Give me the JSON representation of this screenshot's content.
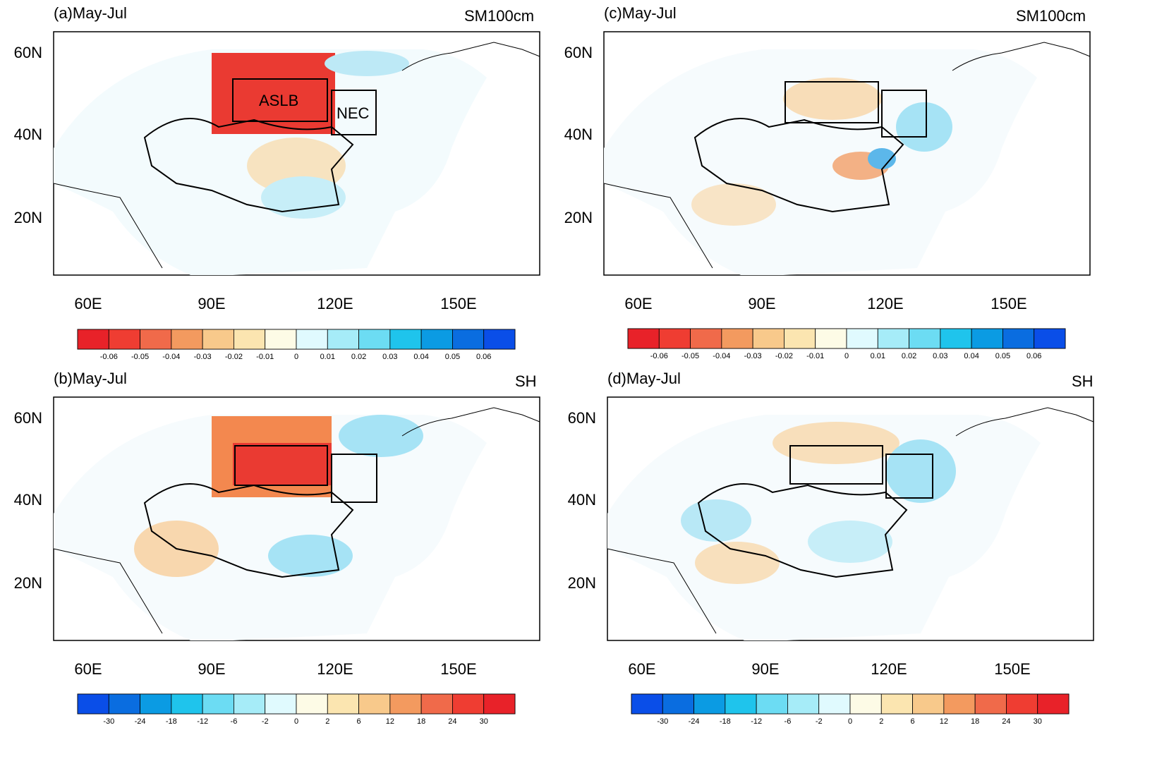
{
  "panels": [
    {
      "id": "a",
      "title": "(a)May-Jul",
      "variable": "SM100cm",
      "boxes": [
        {
          "label": "ASLB"
        },
        {
          "label": "NEC"
        }
      ],
      "colorbar": {
        "labels": [
          "-0.06",
          "-0.05",
          "-0.04",
          "-0.03",
          "-0.02",
          "-0.01",
          "0",
          "0.01",
          "0.02",
          "0.03",
          "0.04",
          "0.05",
          "0.06"
        ],
        "colors": [
          "#e82229",
          "#ef3d32",
          "#f06a4a",
          "#f39a5f",
          "#f8c98b",
          "#fbe5b0",
          "#fdfbe6",
          "#e0fafe",
          "#a6ecf8",
          "#6cdcf3",
          "#1fc4ec",
          "#0b9be3",
          "#0a6de0",
          "#0a4ee8"
        ]
      }
    },
    {
      "id": "b",
      "title": "(b)May-Jul",
      "variable": "SH",
      "boxes": [],
      "colorbar": {
        "labels": [
          "-30",
          "-24",
          "-18",
          "-12",
          "-6",
          "-2",
          "0",
          "2",
          "6",
          "12",
          "18",
          "24",
          "30"
        ],
        "colors": [
          "#0a4ee8",
          "#0a6de0",
          "#0b9be3",
          "#1fc4ec",
          "#6cdcf3",
          "#a6ecf8",
          "#e0fafe",
          "#fdfbe6",
          "#fbe5b0",
          "#f8c98b",
          "#f39a5f",
          "#f06a4a",
          "#ef3d32",
          "#e82229"
        ]
      }
    },
    {
      "id": "c",
      "title": "(c)May-Jul",
      "variable": "SM100cm",
      "boxes": [],
      "colorbar": {
        "labels": [
          "-0.06",
          "-0.05",
          "-0.04",
          "-0.03",
          "-0.02",
          "-0.01",
          "0",
          "0.01",
          "0.02",
          "0.03",
          "0.04",
          "0.05",
          "0.06"
        ],
        "colors": [
          "#e82229",
          "#ef3d32",
          "#f06a4a",
          "#f39a5f",
          "#f8c98b",
          "#fbe5b0",
          "#fdfbe6",
          "#e0fafe",
          "#a6ecf8",
          "#6cdcf3",
          "#1fc4ec",
          "#0b9be3",
          "#0a6de0",
          "#0a4ee8"
        ]
      }
    },
    {
      "id": "d",
      "title": "(d)May-Jul",
      "variable": "SH",
      "boxes": [],
      "colorbar": {
        "labels": [
          "-30",
          "-24",
          "-18",
          "-12",
          "-6",
          "-2",
          "0",
          "2",
          "6",
          "12",
          "18",
          "24",
          "30"
        ],
        "colors": [
          "#0a4ee8",
          "#0a6de0",
          "#0b9be3",
          "#1fc4ec",
          "#6cdcf3",
          "#a6ecf8",
          "#e0fafe",
          "#fdfbe6",
          "#fbe5b0",
          "#f8c98b",
          "#f39a5f",
          "#f06a4a",
          "#ef3d32",
          "#e82229"
        ]
      }
    }
  ],
  "lat_labels": [
    "60N",
    "40N",
    "20N"
  ],
  "lon_labels": [
    "60E",
    "90E",
    "120E",
    "150E"
  ]
}
